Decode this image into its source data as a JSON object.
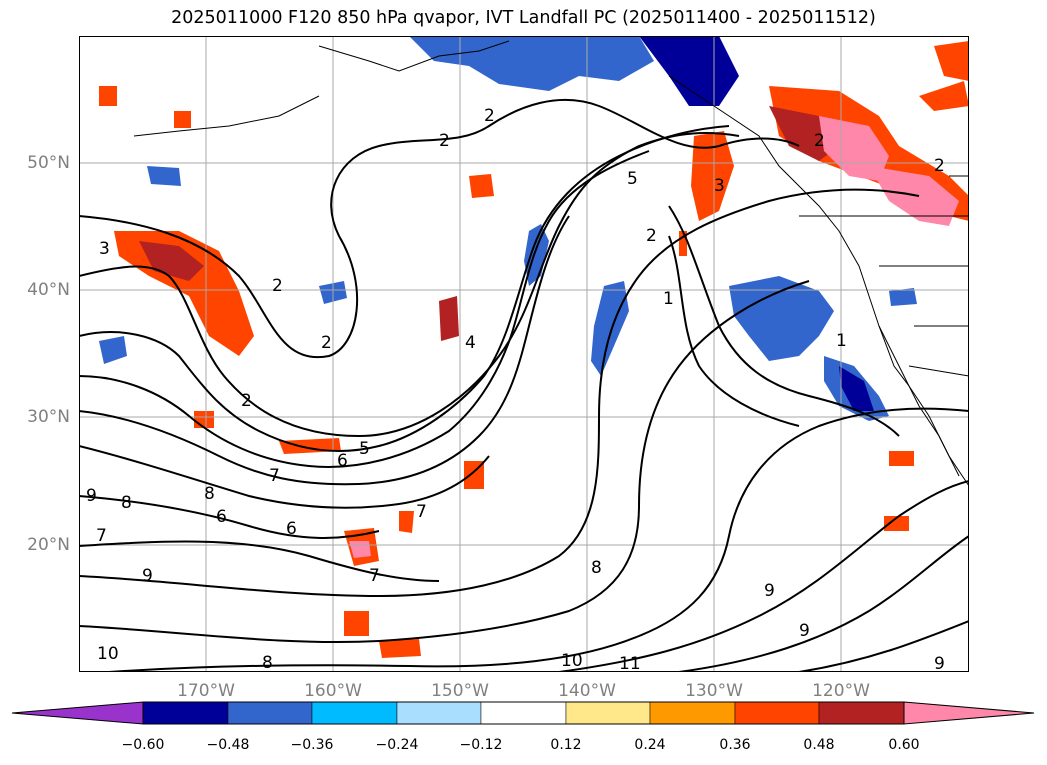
{
  "title": "2025011000 F120 850 hPa qvapor, IVT Landfall PC (2025011400 - 2025011512)",
  "map": {
    "longitude_labels": [
      "170°W",
      "160°W",
      "150°W",
      "140°W",
      "130°W",
      "120°W"
    ],
    "latitude_labels": [
      "50°N",
      "40°N",
      "30°N",
      "20°N"
    ],
    "contour_labels": [
      "2",
      "2",
      "3",
      "5",
      "2",
      "1",
      "2",
      "3",
      "2",
      "2",
      "4",
      "6",
      "5",
      "7",
      "8",
      "6",
      "9",
      "8",
      "7",
      "9",
      "8",
      "10",
      "11",
      "9",
      "10",
      "8",
      "9",
      "6",
      "7",
      "7",
      "9",
      "1",
      "2",
      "2"
    ]
  },
  "colorbar": {
    "tick_labels": [
      "−0.60",
      "−0.48",
      "−0.36",
      "−0.24",
      "−0.12",
      "0.12",
      "0.24",
      "0.36",
      "0.48",
      "0.60"
    ],
    "colors": [
      "#9933cc",
      "#000099",
      "#3366cc",
      "#00bbff",
      "#aadeff",
      "#ffffff",
      "#ffe88a",
      "#ff9900",
      "#ff4400",
      "#b32222",
      "#ff88aa"
    ]
  }
}
